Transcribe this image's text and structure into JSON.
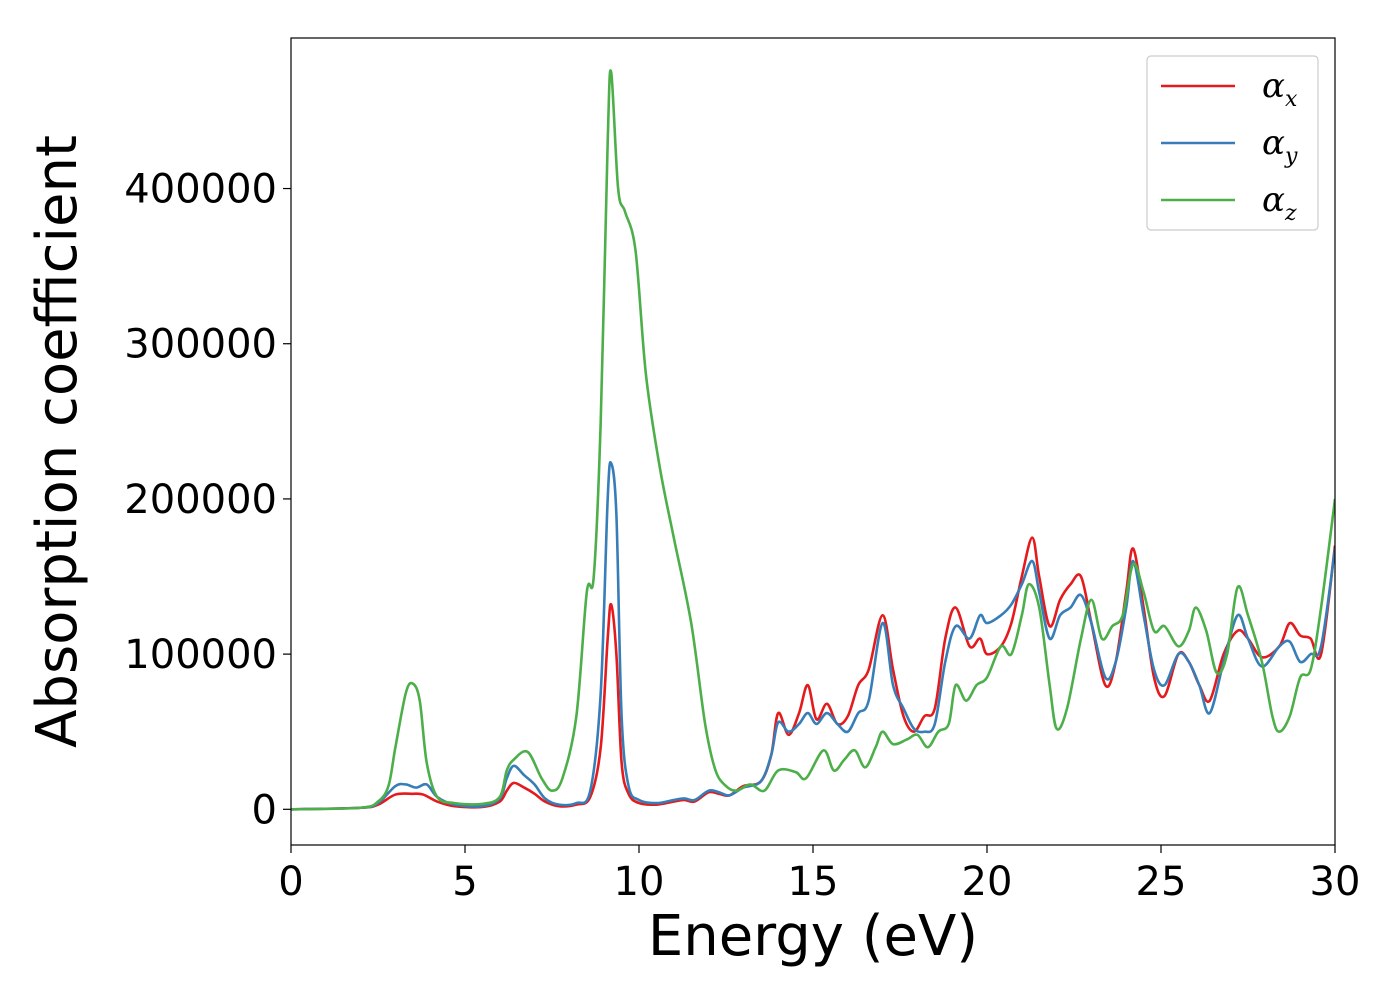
{
  "chart_data": {
    "type": "line",
    "xlabel": "Energy (eV)",
    "ylabel": "Absorption coefficient",
    "xlim": [
      0,
      30
    ],
    "ylim": [
      -23000,
      497000
    ],
    "xticks": [
      0,
      5,
      10,
      15,
      20,
      25,
      30
    ],
    "xtick_labels": [
      "0",
      "5",
      "10",
      "15",
      "20",
      "25",
      "30"
    ],
    "yticks": [
      0,
      100000,
      200000,
      300000,
      400000
    ],
    "ytick_labels": [
      "0",
      "100000",
      "200000",
      "300000",
      "400000"
    ],
    "grid": false,
    "legend": {
      "placement": "top-right",
      "entries": [
        {
          "symbol": "α",
          "subscript": "x",
          "color": "#e41a1c"
        },
        {
          "symbol": "α",
          "subscript": "y",
          "color": "#377eb8"
        },
        {
          "symbol": "α",
          "subscript": "z",
          "color": "#4daf4a"
        }
      ]
    },
    "series": [
      {
        "color": "#e41a1c",
        "points": [
          [
            0,
            0
          ],
          [
            2,
            1000
          ],
          [
            2.5,
            3000
          ],
          [
            3,
            9500
          ],
          [
            3.5,
            10000
          ],
          [
            3.8,
            9500
          ],
          [
            4.2,
            5000
          ],
          [
            4.7,
            2000
          ],
          [
            5.5,
            1500
          ],
          [
            6,
            5000
          ],
          [
            6.2,
            12000
          ],
          [
            6.4,
            17000
          ],
          [
            6.7,
            14000
          ],
          [
            7,
            10000
          ],
          [
            7.3,
            5000
          ],
          [
            7.7,
            2000
          ],
          [
            8.2,
            3000
          ],
          [
            8.6,
            8000
          ],
          [
            8.9,
            40000
          ],
          [
            9.1,
            110000
          ],
          [
            9.2,
            132000
          ],
          [
            9.35,
            100000
          ],
          [
            9.5,
            30000
          ],
          [
            9.7,
            10000
          ],
          [
            10,
            4000
          ],
          [
            10.5,
            3000
          ],
          [
            11,
            5000
          ],
          [
            11.3,
            6000
          ],
          [
            11.6,
            5000
          ],
          [
            12,
            11000
          ],
          [
            12.3,
            10000
          ],
          [
            12.6,
            9000
          ],
          [
            13,
            15000
          ],
          [
            13.5,
            18000
          ],
          [
            13.8,
            35000
          ],
          [
            14,
            62000
          ],
          [
            14.3,
            48000
          ],
          [
            14.6,
            62000
          ],
          [
            14.85,
            80000
          ],
          [
            15.1,
            58000
          ],
          [
            15.4,
            68000
          ],
          [
            15.7,
            55000
          ],
          [
            16,
            60000
          ],
          [
            16.3,
            80000
          ],
          [
            16.6,
            90000
          ],
          [
            17,
            125000
          ],
          [
            17.3,
            90000
          ],
          [
            17.6,
            60000
          ],
          [
            17.9,
            50000
          ],
          [
            18.2,
            60000
          ],
          [
            18.5,
            65000
          ],
          [
            18.8,
            110000
          ],
          [
            19.1,
            130000
          ],
          [
            19.5,
            105000
          ],
          [
            19.8,
            110000
          ],
          [
            20,
            100000
          ],
          [
            20.4,
            105000
          ],
          [
            20.7,
            120000
          ],
          [
            21,
            150000
          ],
          [
            21.3,
            175000
          ],
          [
            21.5,
            150000
          ],
          [
            21.8,
            118000
          ],
          [
            22.1,
            135000
          ],
          [
            22.4,
            145000
          ],
          [
            22.7,
            150000
          ],
          [
            23,
            120000
          ],
          [
            23.4,
            80000
          ],
          [
            23.7,
            95000
          ],
          [
            24,
            140000
          ],
          [
            24.2,
            168000
          ],
          [
            24.5,
            130000
          ],
          [
            24.8,
            85000
          ],
          [
            25.1,
            73000
          ],
          [
            25.5,
            100000
          ],
          [
            25.8,
            95000
          ],
          [
            26.1,
            80000
          ],
          [
            26.4,
            70000
          ],
          [
            26.8,
            100000
          ],
          [
            27.2,
            115000
          ],
          [
            27.5,
            110000
          ],
          [
            27.9,
            98000
          ],
          [
            28.4,
            105000
          ],
          [
            28.7,
            120000
          ],
          [
            29,
            112000
          ],
          [
            29.3,
            110000
          ],
          [
            29.6,
            100000
          ],
          [
            30,
            170000
          ]
        ]
      },
      {
        "color": "#377eb8",
        "points": [
          [
            0,
            0
          ],
          [
            2,
            1000
          ],
          [
            2.5,
            4000
          ],
          [
            3,
            15000
          ],
          [
            3.3,
            16000
          ],
          [
            3.6,
            14000
          ],
          [
            3.9,
            16000
          ],
          [
            4.2,
            8000
          ],
          [
            4.7,
            3000
          ],
          [
            5.5,
            2000
          ],
          [
            6,
            7000
          ],
          [
            6.2,
            20000
          ],
          [
            6.4,
            28000
          ],
          [
            6.7,
            22000
          ],
          [
            7,
            16000
          ],
          [
            7.3,
            7000
          ],
          [
            7.7,
            3000
          ],
          [
            8.2,
            4000
          ],
          [
            8.6,
            12000
          ],
          [
            8.9,
            75000
          ],
          [
            9.1,
            200000
          ],
          [
            9.2,
            223000
          ],
          [
            9.35,
            190000
          ],
          [
            9.5,
            60000
          ],
          [
            9.7,
            15000
          ],
          [
            10,
            6000
          ],
          [
            10.5,
            4000
          ],
          [
            11,
            6000
          ],
          [
            11.3,
            7000
          ],
          [
            11.6,
            6000
          ],
          [
            12,
            12000
          ],
          [
            12.3,
            11000
          ],
          [
            12.6,
            9000
          ],
          [
            13,
            14000
          ],
          [
            13.5,
            18000
          ],
          [
            13.8,
            35000
          ],
          [
            14,
            56000
          ],
          [
            14.3,
            50000
          ],
          [
            14.6,
            55000
          ],
          [
            14.85,
            62000
          ],
          [
            15.1,
            55000
          ],
          [
            15.4,
            62000
          ],
          [
            15.7,
            55000
          ],
          [
            16,
            50000
          ],
          [
            16.3,
            62000
          ],
          [
            16.6,
            70000
          ],
          [
            17,
            120000
          ],
          [
            17.3,
            80000
          ],
          [
            17.6,
            65000
          ],
          [
            17.9,
            52000
          ],
          [
            18.2,
            50000
          ],
          [
            18.5,
            55000
          ],
          [
            18.8,
            95000
          ],
          [
            19.1,
            118000
          ],
          [
            19.5,
            110000
          ],
          [
            19.8,
            125000
          ],
          [
            20,
            120000
          ],
          [
            20.4,
            125000
          ],
          [
            20.7,
            132000
          ],
          [
            21,
            145000
          ],
          [
            21.3,
            160000
          ],
          [
            21.5,
            140000
          ],
          [
            21.8,
            110000
          ],
          [
            22.1,
            125000
          ],
          [
            22.4,
            130000
          ],
          [
            22.7,
            138000
          ],
          [
            23,
            120000
          ],
          [
            23.4,
            85000
          ],
          [
            23.7,
            95000
          ],
          [
            24,
            130000
          ],
          [
            24.2,
            160000
          ],
          [
            24.5,
            125000
          ],
          [
            24.8,
            90000
          ],
          [
            25.1,
            80000
          ],
          [
            25.5,
            100000
          ],
          [
            25.8,
            95000
          ],
          [
            26.1,
            80000
          ],
          [
            26.4,
            62000
          ],
          [
            26.8,
            95000
          ],
          [
            27.2,
            125000
          ],
          [
            27.5,
            110000
          ],
          [
            27.9,
            92000
          ],
          [
            28.4,
            105000
          ],
          [
            28.7,
            108000
          ],
          [
            29,
            95000
          ],
          [
            29.3,
            100000
          ],
          [
            29.6,
            105000
          ],
          [
            30,
            168000
          ]
        ]
      },
      {
        "color": "#4daf4a",
        "points": [
          [
            0,
            0
          ],
          [
            2,
            1000
          ],
          [
            2.5,
            5000
          ],
          [
            2.8,
            15000
          ],
          [
            3,
            40000
          ],
          [
            3.3,
            75000
          ],
          [
            3.5,
            81000
          ],
          [
            3.7,
            70000
          ],
          [
            3.9,
            30000
          ],
          [
            4.2,
            8000
          ],
          [
            4.7,
            4000
          ],
          [
            5.5,
            3500
          ],
          [
            6,
            8000
          ],
          [
            6.2,
            25000
          ],
          [
            6.4,
            32000
          ],
          [
            6.8,
            37000
          ],
          [
            7.2,
            20000
          ],
          [
            7.5,
            12000
          ],
          [
            7.8,
            20000
          ],
          [
            8.2,
            60000
          ],
          [
            8.5,
            140000
          ],
          [
            8.7,
            150000
          ],
          [
            8.9,
            250000
          ],
          [
            9.1,
            430000
          ],
          [
            9.2,
            475000
          ],
          [
            9.4,
            400000
          ],
          [
            9.6,
            385000
          ],
          [
            9.9,
            360000
          ],
          [
            10.2,
            280000
          ],
          [
            10.6,
            220000
          ],
          [
            11,
            175000
          ],
          [
            11.5,
            120000
          ],
          [
            11.9,
            55000
          ],
          [
            12.2,
            25000
          ],
          [
            12.5,
            15000
          ],
          [
            12.8,
            12000
          ],
          [
            13.2,
            16000
          ],
          [
            13.6,
            12000
          ],
          [
            14,
            25000
          ],
          [
            14.5,
            24000
          ],
          [
            14.8,
            20000
          ],
          [
            15.3,
            38000
          ],
          [
            15.6,
            25000
          ],
          [
            15.9,
            32000
          ],
          [
            16.2,
            38000
          ],
          [
            16.5,
            27000
          ],
          [
            16.8,
            40000
          ],
          [
            17,
            50000
          ],
          [
            17.3,
            42000
          ],
          [
            17.7,
            45000
          ],
          [
            18,
            48000
          ],
          [
            18.3,
            40000
          ],
          [
            18.6,
            50000
          ],
          [
            18.9,
            55000
          ],
          [
            19.1,
            80000
          ],
          [
            19.4,
            70000
          ],
          [
            19.7,
            80000
          ],
          [
            20,
            85000
          ],
          [
            20.4,
            105000
          ],
          [
            20.7,
            100000
          ],
          [
            21,
            125000
          ],
          [
            21.2,
            145000
          ],
          [
            21.5,
            130000
          ],
          [
            21.8,
            80000
          ],
          [
            22,
            52000
          ],
          [
            22.3,
            65000
          ],
          [
            22.7,
            110000
          ],
          [
            23,
            135000
          ],
          [
            23.3,
            110000
          ],
          [
            23.6,
            118000
          ],
          [
            23.9,
            125000
          ],
          [
            24.2,
            158000
          ],
          [
            24.5,
            140000
          ],
          [
            24.8,
            115000
          ],
          [
            25.1,
            118000
          ],
          [
            25.5,
            105000
          ],
          [
            25.8,
            115000
          ],
          [
            26,
            130000
          ],
          [
            26.3,
            115000
          ],
          [
            26.6,
            88000
          ],
          [
            26.9,
            100000
          ],
          [
            27.2,
            143000
          ],
          [
            27.5,
            125000
          ],
          [
            27.9,
            95000
          ],
          [
            28.2,
            60000
          ],
          [
            28.4,
            50000
          ],
          [
            28.7,
            60000
          ],
          [
            29,
            85000
          ],
          [
            29.3,
            90000
          ],
          [
            29.6,
            130000
          ],
          [
            30,
            200000
          ]
        ]
      }
    ]
  }
}
